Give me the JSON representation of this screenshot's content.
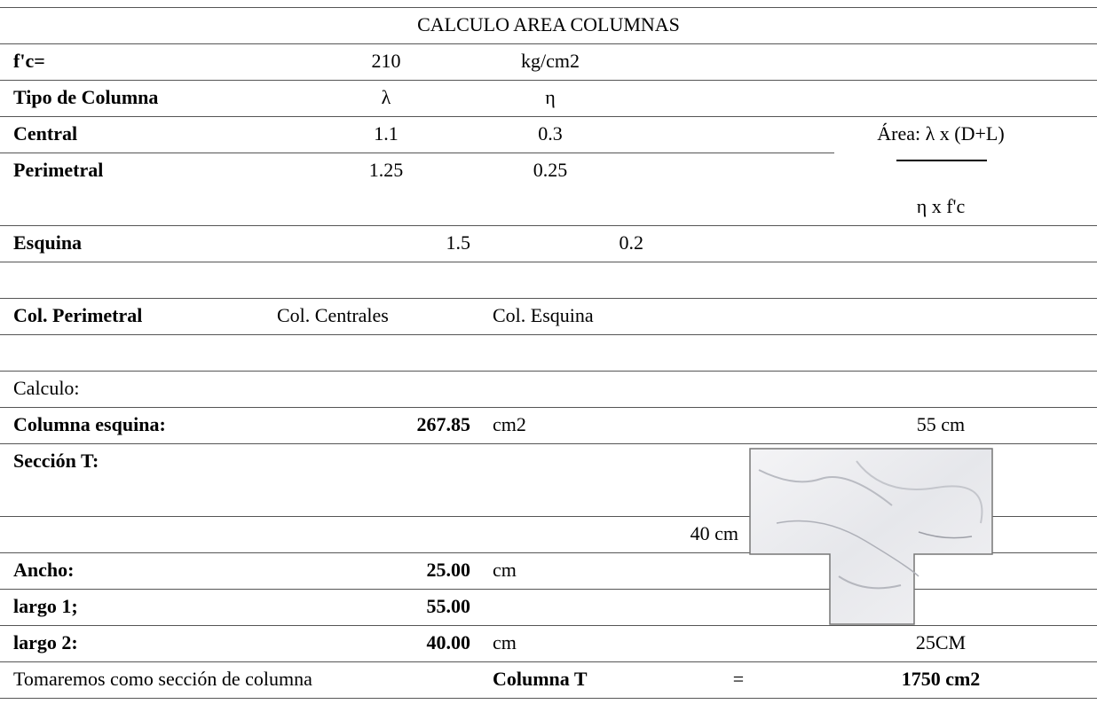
{
  "header": {
    "title": "CALCULO AREA COLUMNAS"
  },
  "table": {
    "rows": [
      [
        "f'c=",
        "210",
        "kg/cm2"
      ],
      [
        "Tipo de Columna",
        "λ",
        "η"
      ],
      [
        "Central",
        "1.1",
        "0.3"
      ],
      [
        "Perimetral",
        "1.25",
        "0.25"
      ],
      [
        "Esquina",
        "1.5",
        "0.2"
      ],
      [
        "Col. Perimetral",
        "Col. Centrales",
        "Col. Esquina"
      ],
      [
        "Calculo:"
      ],
      [
        "Columna esquina:",
        "267.85",
        "cm2"
      ],
      [
        "Sección T:"
      ],
      [
        "Ancho:",
        "25.00",
        "cm"
      ],
      [
        "largo 1;",
        "55.00"
      ],
      [
        "largo 2:",
        "40.00",
        "cm"
      ]
    ]
  },
  "formula": {
    "numerator": "Área: λ x (D+L)",
    "denominator": "η x f'c"
  },
  "figure": {
    "top_label": "55 cm",
    "side_label": "40 cm",
    "bottom_label": "25CM"
  },
  "conclusion": {
    "text": "Tomaremos como sección de columna",
    "name": "Columna T",
    "equals": "=",
    "result": "1750 cm2"
  }
}
